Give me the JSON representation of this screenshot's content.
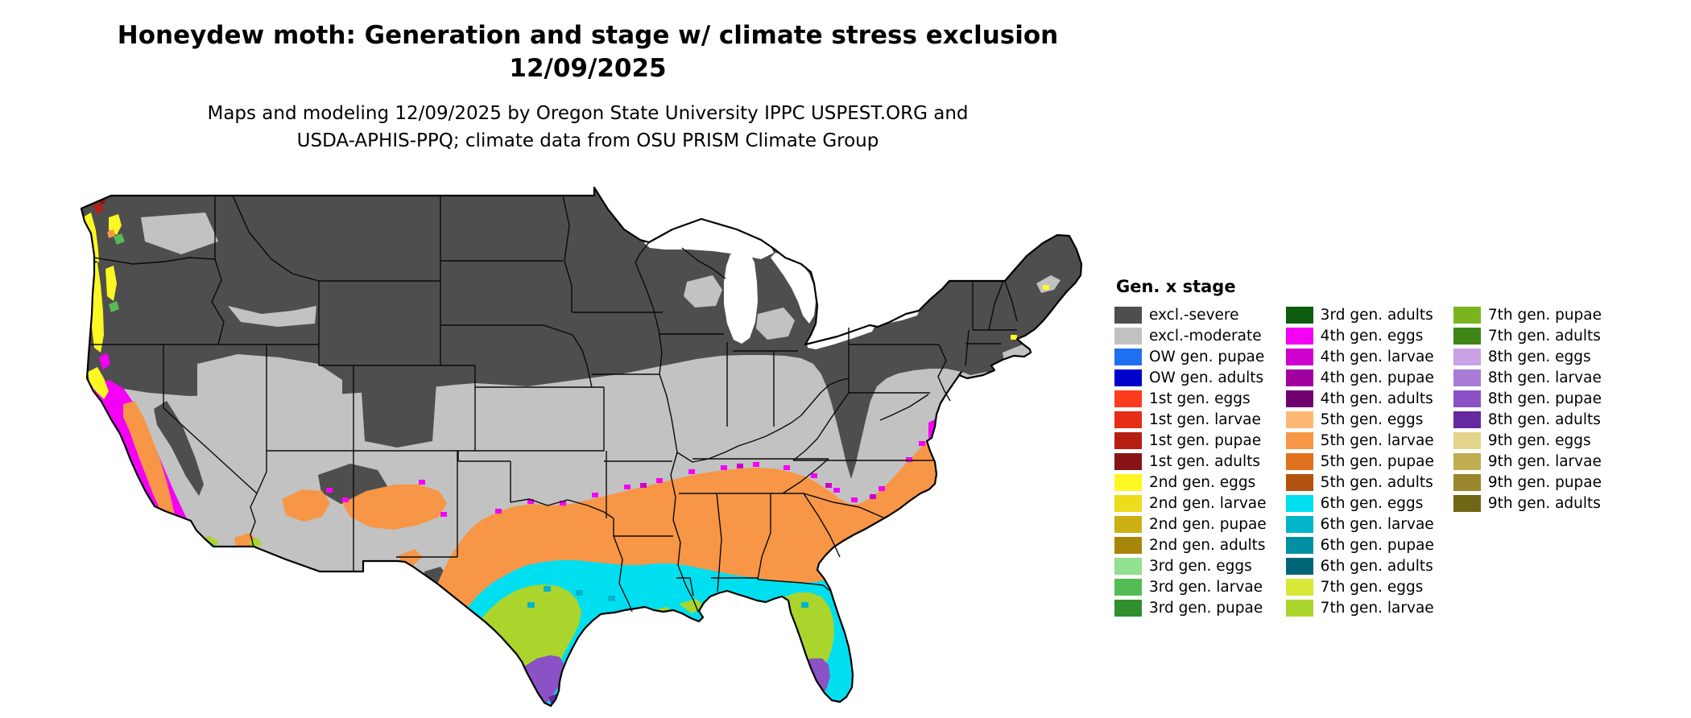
{
  "title": {
    "line1": "Honeydew moth: Generation and stage w/ climate stress exclusion",
    "line2": "12/09/2025"
  },
  "subtitle": {
    "line1": "Maps and modeling 12/09/2025 by Oregon State University IPPC USPEST.ORG and",
    "line2": "USDA-APHIS-PPQ; climate data from OSU PRISM Climate Group"
  },
  "legend": {
    "heading": "Gen. x stage",
    "columns": [
      [
        {
          "label": "excl.-severe",
          "color": "excl_severe"
        },
        {
          "label": "excl.-moderate",
          "color": "excl_moderate"
        },
        {
          "label": "OW gen. pupae",
          "color": "ow_pupae"
        },
        {
          "label": "OW gen. adults",
          "color": "ow_adults"
        },
        {
          "label": "1st gen. eggs",
          "color": "g1_eggs"
        },
        {
          "label": "1st gen. larvae",
          "color": "g1_larvae"
        },
        {
          "label": "1st gen. pupae",
          "color": "g1_pupae"
        },
        {
          "label": "1st gen. adults",
          "color": "g1_adults"
        },
        {
          "label": "2nd gen. eggs",
          "color": "g2_eggs"
        },
        {
          "label": "2nd gen. larvae",
          "color": "g2_larvae"
        },
        {
          "label": "2nd gen. pupae",
          "color": "g2_pupae"
        },
        {
          "label": "2nd gen. adults",
          "color": "g2_adults"
        },
        {
          "label": "3rd gen. eggs",
          "color": "g3_eggs"
        },
        {
          "label": "3rd gen. larvae",
          "color": "g3_larvae"
        },
        {
          "label": "3rd gen. pupae",
          "color": "g3_pupae"
        }
      ],
      [
        {
          "label": "3rd gen. adults",
          "color": "g3_adults"
        },
        {
          "label": "4th gen. eggs",
          "color": "g4_eggs"
        },
        {
          "label": "4th gen. larvae",
          "color": "g4_larvae"
        },
        {
          "label": "4th gen. pupae",
          "color": "g4_pupae"
        },
        {
          "label": "4th gen. adults",
          "color": "g4_adults"
        },
        {
          "label": "5th gen. eggs",
          "color": "g5_eggs"
        },
        {
          "label": "5th gen. larvae",
          "color": "g5_larvae"
        },
        {
          "label": "5th gen. pupae",
          "color": "g5_pupae"
        },
        {
          "label": "5th gen. adults",
          "color": "g5_adults"
        },
        {
          "label": "6th gen. eggs",
          "color": "g6_eggs"
        },
        {
          "label": "6th gen. larvae",
          "color": "g6_larvae"
        },
        {
          "label": "6th gen. pupae",
          "color": "g6_pupae"
        },
        {
          "label": "6th gen. adults",
          "color": "g6_adults"
        },
        {
          "label": "7th gen. eggs",
          "color": "g7_eggs"
        },
        {
          "label": "7th gen. larvae",
          "color": "g7_larvae"
        }
      ],
      [
        {
          "label": "7th gen. pupae",
          "color": "g7_pupae"
        },
        {
          "label": "7th gen. adults",
          "color": "g7_adults"
        },
        {
          "label": "8th gen. eggs",
          "color": "g8_eggs"
        },
        {
          "label": "8th gen. larvae",
          "color": "g8_larvae"
        },
        {
          "label": "8th gen. pupae",
          "color": "g8_pupae"
        },
        {
          "label": "8th gen. adults",
          "color": "g8_adults"
        },
        {
          "label": "9th gen. eggs",
          "color": "g9_eggs"
        },
        {
          "label": "9th gen. larvae",
          "color": "g9_larvae"
        },
        {
          "label": "9th gen. pupae",
          "color": "g9_pupae"
        },
        {
          "label": "9th gen. adults",
          "color": "g9_adults"
        }
      ]
    ]
  },
  "colors": {
    "excl_severe": "#4e4e4e",
    "excl_moderate": "#c2c2c2",
    "ow_pupae": "#1f6ff2",
    "ow_adults": "#0000cd",
    "g1_eggs": "#ff3b1f",
    "g1_larvae": "#e62d16",
    "g1_pupae": "#b71f15",
    "g1_adults": "#871414",
    "g2_eggs": "#fdf723",
    "g2_larvae": "#ecdc1c",
    "g2_pupae": "#cdb014",
    "g2_adults": "#a8860b",
    "g3_eggs": "#90e190",
    "g3_larvae": "#55bb55",
    "g3_pupae": "#2f8f2f",
    "g3_adults": "#0e5c0e",
    "g4_eggs": "#f400f4",
    "g4_larvae": "#ce00ce",
    "g4_pupae": "#a100a1",
    "g4_adults": "#700070",
    "g5_eggs": "#ffb874",
    "g5_larvae": "#f79646",
    "g5_pupae": "#e0711f",
    "g5_adults": "#b1520e",
    "g6_eggs": "#00dff0",
    "g6_larvae": "#00b5c9",
    "g6_pupae": "#008fa3",
    "g6_adults": "#006675",
    "g7_eggs": "#d7e838",
    "g7_larvae": "#abd42c",
    "g7_pupae": "#7ab520",
    "g7_adults": "#3f8616",
    "g8_eggs": "#c9a2e6",
    "g8_larvae": "#a97cd6",
    "g8_pupae": "#8a52c4",
    "g8_adults": "#65289e",
    "g9_eggs": "#e2d58b",
    "g9_larvae": "#c2ae52",
    "g9_pupae": "#9a862c",
    "g9_adults": "#716614"
  }
}
